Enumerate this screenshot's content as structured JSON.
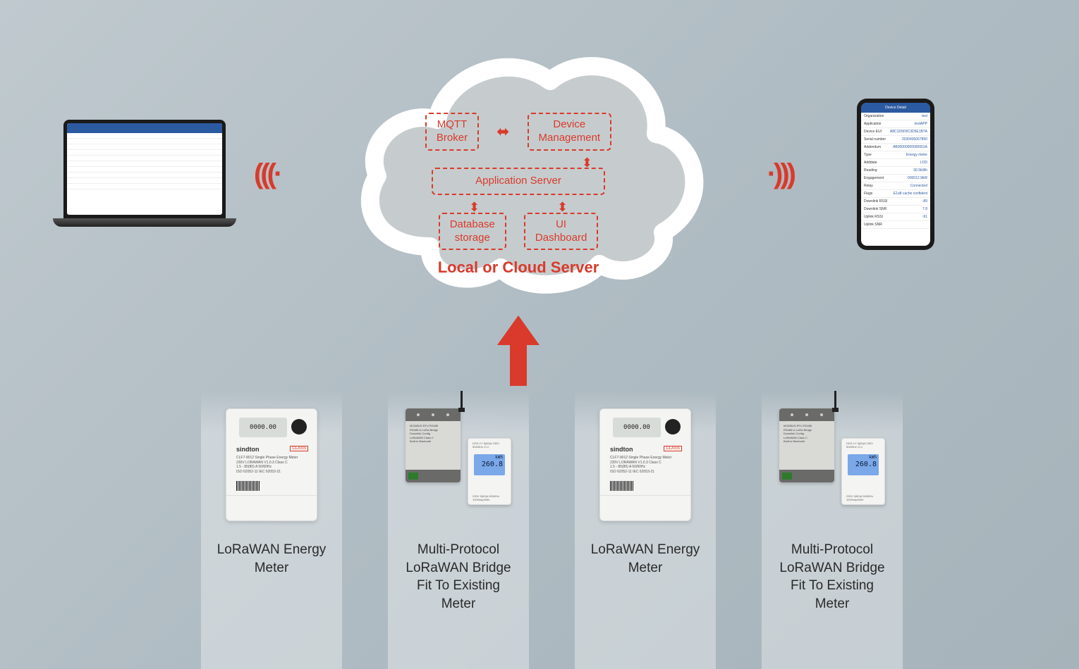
{
  "colors": {
    "accent": "#d93a2b",
    "bg_gradient_from": "#bfc9ce",
    "bg_gradient_to": "#a6b3ba",
    "cloud_outline": "#ffffff",
    "cloud_fill": "#c6ccce"
  },
  "cloud": {
    "mqtt": "MQTT\nBroker",
    "device_mgmt": "Device\nManagement",
    "app_server": "Application Server",
    "db": "Database\nstorage",
    "ui_dash": "UI\nDashboard",
    "title": "Local or Cloud Server"
  },
  "devices": [
    {
      "label": "LoRaWAN Energy\nMeter",
      "type": "meter"
    },
    {
      "label": "Multi-Protocol\nLoRaWAN Bridge\nFit To Existing\nMeter",
      "type": "bridge"
    },
    {
      "label": "LoRaWAN Energy\nMeter",
      "type": "meter"
    },
    {
      "label": "Multi-Protocol\nLoRaWAN Bridge\nFit To Existing\nMeter",
      "type": "bridge"
    }
  ],
  "meter": {
    "lcd": "0000.00",
    "brand": "sindton",
    "tag": "CLASS",
    "specs": "CLF7-9012 Single Phase Energy Meter\n230V  LORAWAN V1.0.3  Class C\n1.5 - 80(80) A  50/60Hz\nISO 62052-11  IEC 62053-21"
  },
  "bridge": {
    "body": "MODBUS RTU RS485\nRS485 to LoRa Bridge\nDownlink Config\nLoRaWAN Class C\nBuilt-in Bluetooth",
    "sub_lcd_top": "kWh",
    "sub_lcd_val": "260.8",
    "sub_top": "DDS-1Y 5(60)A 230V 50/60Hz Cl.1",
    "sub_bot": "230V  5(60)A  50/60Hz\n1000imp/kWh"
  },
  "phone": {
    "header": "Device Detail",
    "rows": [
      {
        "k": "Organization",
        "v": "test"
      },
      {
        "k": "Application",
        "v": "testAPP"
      },
      {
        "k": "Device EUI",
        "v": "A8C1D5F8C3D5E1B7A"
      },
      {
        "k": "Serial number",
        "v": "2030405067890"
      },
      {
        "k": "Addendum",
        "v": "AB00000000000001A"
      },
      {
        "k": "Type",
        "v": "Energy meter"
      },
      {
        "k": "Adddate",
        "v": "LOD"
      },
      {
        "k": "Reading",
        "v": "30.5kWh"
      },
      {
        "k": "Engagement",
        "v": "000012.9kW"
      },
      {
        "k": "Relay",
        "v": "Connected"
      },
      {
        "k": "Flags",
        "v": "E1a8 cache confident"
      },
      {
        "k": "Downlink RSSI",
        "v": "-89"
      },
      {
        "k": "Downlink SNR",
        "v": "7.8"
      },
      {
        "k": "Uplink RSSI",
        "v": "-91"
      },
      {
        "k": "Uplink SNR",
        "v": ""
      }
    ]
  }
}
